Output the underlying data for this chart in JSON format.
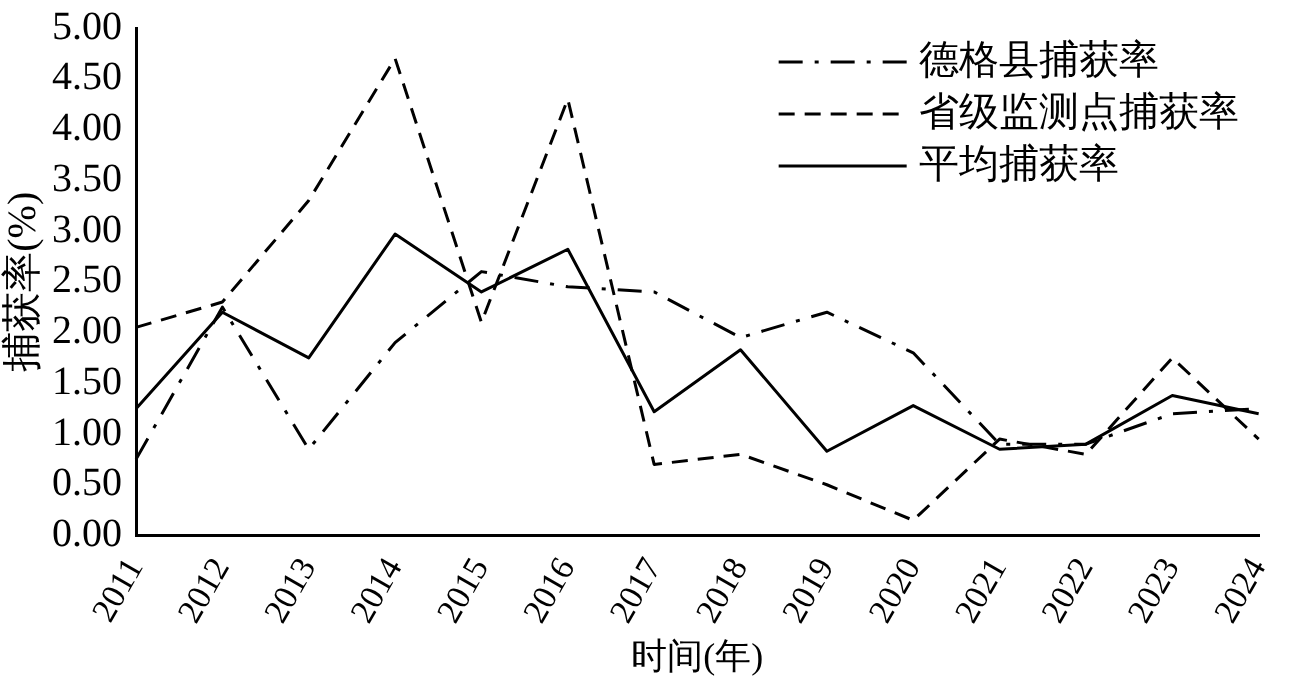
{
  "chart_data": {
    "type": "line",
    "xlabel": "时间(年)",
    "ylabel": "捕获率(%)",
    "categories": [
      "2011",
      "2012",
      "2013",
      "2014",
      "2015",
      "2016",
      "2017",
      "2018",
      "2019",
      "2020",
      "2021",
      "2022",
      "2023",
      "2024"
    ],
    "series": [
      {
        "name": "德格县捕获率",
        "color": "#000000",
        "line_style": "dashdot",
        "values": [
          0.75,
          2.25,
          0.85,
          1.9,
          2.6,
          2.45,
          2.4,
          1.95,
          2.2,
          1.8,
          0.9,
          0.9,
          1.2,
          1.25
        ]
      },
      {
        "name": "省级监测点捕获率",
        "color": "#000000",
        "line_style": "dashed",
        "values": [
          2.05,
          2.3,
          3.3,
          4.7,
          2.1,
          4.3,
          0.7,
          0.8,
          0.5,
          0.15,
          0.95,
          0.8,
          1.75,
          0.95
        ]
      },
      {
        "name": "平均捕获率",
        "color": "#000000",
        "line_style": "solid",
        "values": [
          1.25,
          2.2,
          1.75,
          2.97,
          2.4,
          2.82,
          1.22,
          1.83,
          0.83,
          1.28,
          0.85,
          0.9,
          1.38,
          1.2
        ]
      }
    ],
    "ylim": [
      0,
      5
    ],
    "yticks": [
      {
        "value": 0,
        "label": "0.00"
      },
      {
        "value": 0.5,
        "label": "0.50"
      },
      {
        "value": 1,
        "label": "1.00"
      },
      {
        "value": 1.5,
        "label": "1.50"
      },
      {
        "value": 2,
        "label": "2.00"
      },
      {
        "value": 2.5,
        "label": "2.50"
      },
      {
        "value": 3,
        "label": "3.00"
      },
      {
        "value": 3.5,
        "label": "3.50"
      },
      {
        "value": 4,
        "label": "4.00"
      },
      {
        "value": 4.5,
        "label": "4.50"
      },
      {
        "value": 5,
        "label": "5.00"
      }
    ],
    "grid": false,
    "legend": "top right",
    "marker": "none"
  }
}
